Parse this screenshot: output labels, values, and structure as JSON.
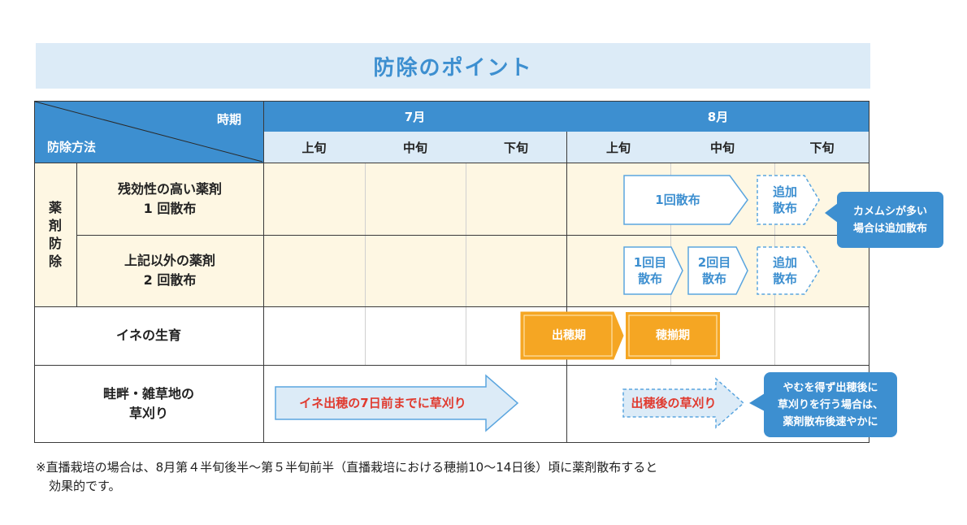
{
  "title": "防除のポイント",
  "header": {
    "period_label": "時期",
    "method_label": "防除方法",
    "months": [
      "7月",
      "8月"
    ],
    "periods": [
      "上旬",
      "中旬",
      "下旬",
      "上旬",
      "中旬",
      "下旬"
    ]
  },
  "rows": {
    "chemical_group": [
      "薬",
      "剤",
      "防",
      "除"
    ],
    "residual": {
      "line1": "残効性の高い薬剤",
      "line2": "1 回散布"
    },
    "other": {
      "line1": "上記以外の薬剤",
      "line2": "2 回散布"
    },
    "rice_growth": "イネの生育",
    "weeds": {
      "line1": "畦畔・雑草地の",
      "line2": "草刈り"
    }
  },
  "arrows": {
    "residual_spray": "1回散布",
    "residual_extra": [
      "追加",
      "散布"
    ],
    "other_spray1": [
      "1回目",
      "散布"
    ],
    "other_spray2": [
      "2回目",
      "散布"
    ],
    "other_extra": [
      "追加",
      "散布"
    ],
    "heading": "出穂期",
    "full_heading": "穂揃期",
    "weed_before": "イネ出穂の7日前までに草刈り",
    "weed_after": "出穂後の草刈り"
  },
  "callouts": {
    "bug": [
      "カメムシが多い",
      "場合は追加散布"
    ],
    "after_heading": [
      "やむを得ず出穂後に",
      "草刈りを行う場合は、",
      "薬剤散布後速やかに"
    ]
  },
  "footnote": {
    "line1": "※直播栽培の場合は、8月第４半旬後半～第５半旬前半（直播栽培における穂揃10～14日後）頃に薬剤散布すると",
    "line2": "効果的です。"
  },
  "colors": {
    "header_blue": "#3d8fd0",
    "header_light": "#dcebf7",
    "cream": "#fef7e3",
    "growth_orange": "#f5a623",
    "accent_red": "#e03a2f"
  }
}
